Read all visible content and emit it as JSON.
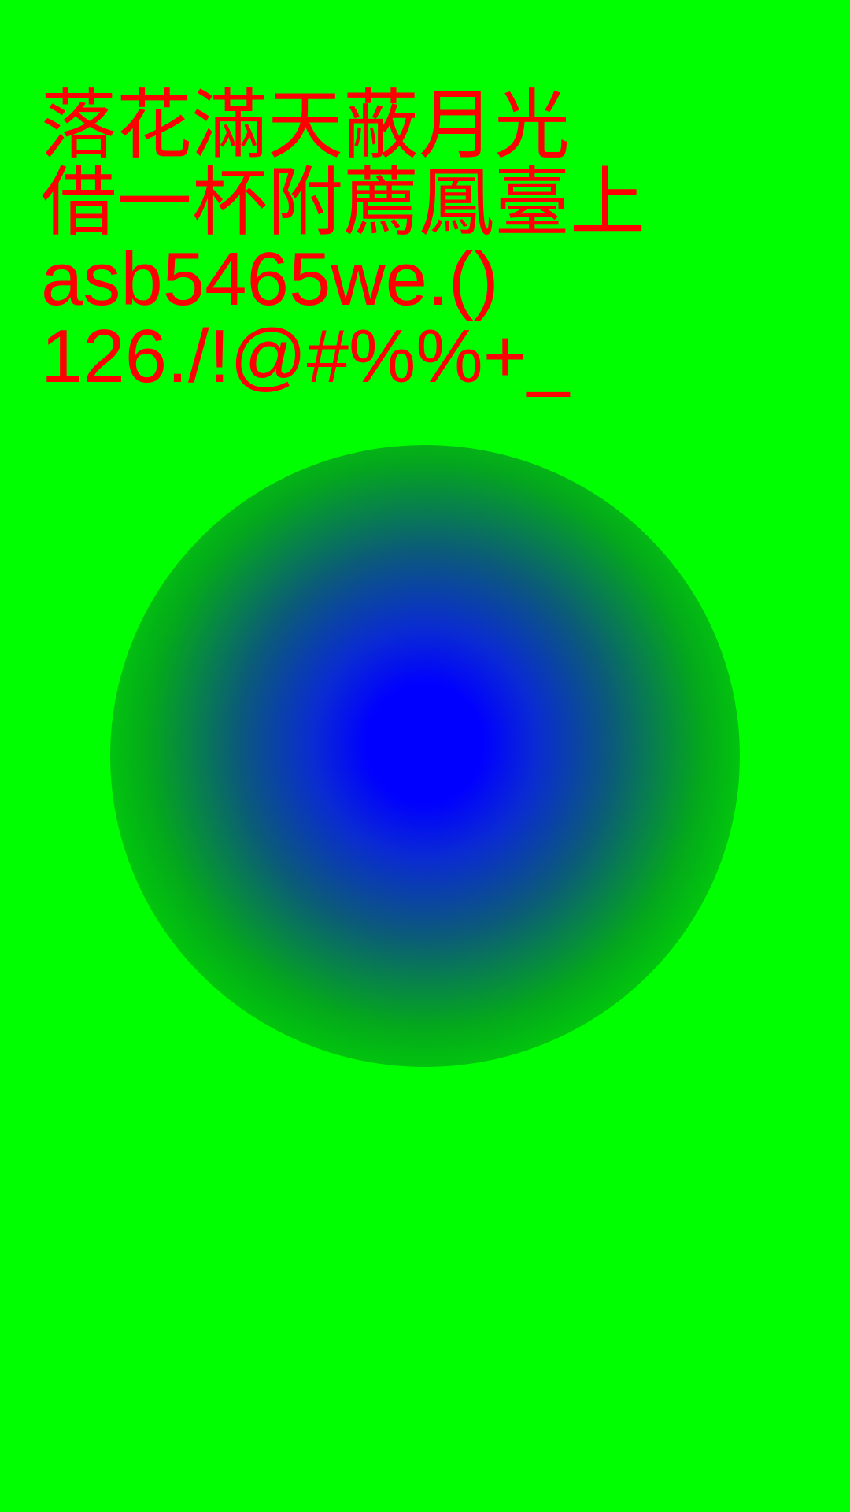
{
  "text_lines": [
    "落花滿天蔽月光",
    "借一杯附薦鳳臺上",
    "asb5465we.()",
    "126./!@#%%+_"
  ],
  "colors": {
    "background": "#00ff00",
    "text": "#ff0000",
    "gradient_center": "#0000ff"
  }
}
